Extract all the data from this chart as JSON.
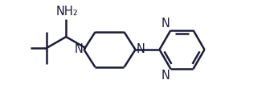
{
  "bg_color": "#ffffff",
  "line_color": "#1c1c3a",
  "line_width": 1.8,
  "font_size_nh2": 10.5,
  "font_size_n": 10.5,
  "NH2_label": "NH₂",
  "N_label": "N"
}
